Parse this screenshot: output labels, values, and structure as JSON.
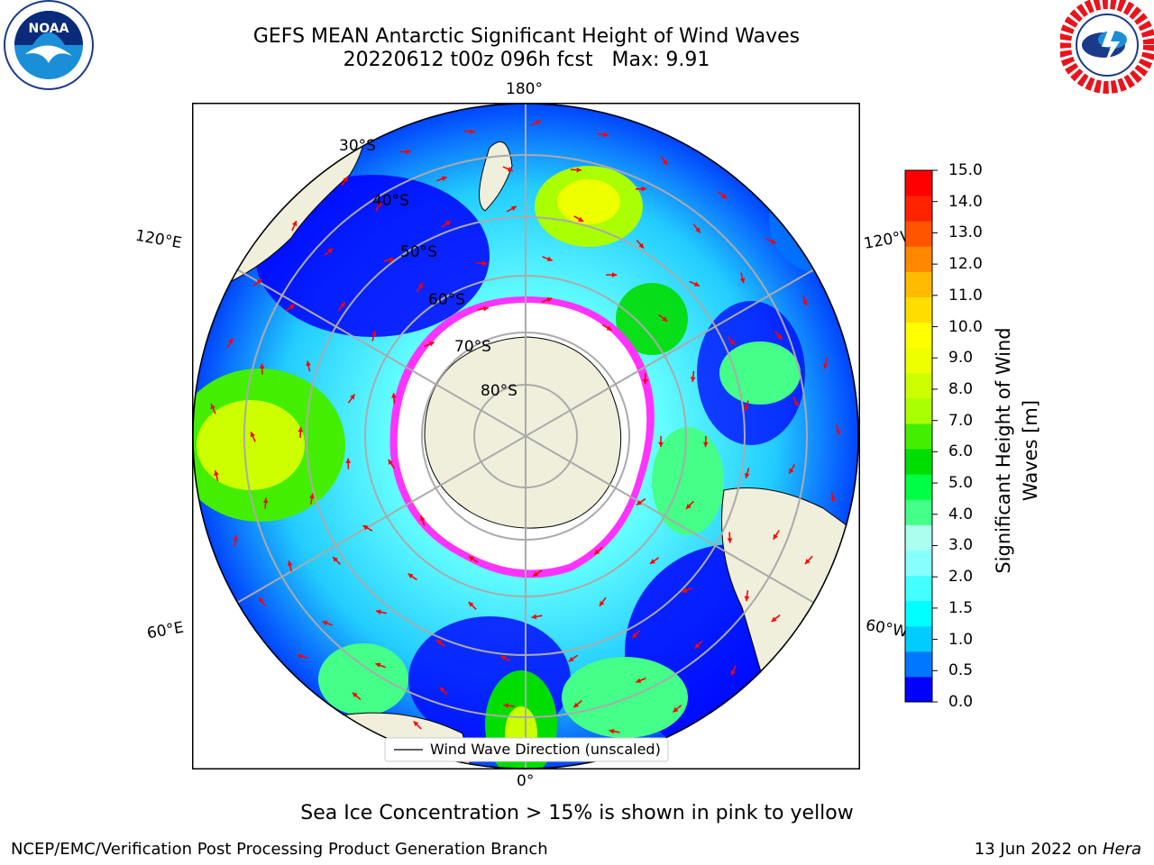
{
  "title_line1": "GEFS MEAN Antarctic Significant Height of Wind Waves",
  "title_line2": "20220612 t00z 096h fcst   Max: 9.91",
  "map": {
    "projection": "south-polar-stereographic",
    "meridian_labels": {
      "top": "180°",
      "bottom": "0°",
      "upper_left": "120°E",
      "upper_right": "120°W",
      "lower_left": "60°E",
      "lower_right": "60°W"
    },
    "parallel_labels": [
      "30°S",
      "40°S",
      "50°S",
      "60°S",
      "70°S",
      "80°S"
    ],
    "legend_label": "Wind Wave Direction (unscaled)",
    "arrow_color": "#ff0000",
    "land_color": "#efefdb",
    "ice_colors": [
      "#ff33ff",
      "#ffcc33"
    ]
  },
  "colorbar": {
    "title": "Significant Height of Wind Waves [m]",
    "ticks": [
      "15.0",
      "14.0",
      "13.0",
      "12.0",
      "11.0",
      "10.0",
      "9.0",
      "8.0",
      "7.0",
      "6.0",
      "5.0",
      "4.0",
      "3.0",
      "2.0",
      "1.5",
      "1.0",
      "0.5",
      "0.0"
    ],
    "colors_bottom_to_top": [
      "#0000ff",
      "#0077ff",
      "#00ccff",
      "#00ffff",
      "#44ffff",
      "#88ffff",
      "#aaffee",
      "#44ff88",
      "#00ff44",
      "#00dd00",
      "#44ee00",
      "#aaff00",
      "#ccff00",
      "#eeff00",
      "#ffff00",
      "#ffdd00",
      "#ffbb00",
      "#ff8800",
      "#ff5500",
      "#ff2200",
      "#ff0000"
    ]
  },
  "footnote": "Sea Ice Concentration > 15% is shown in pink to yellow",
  "credits": "NCEP/EMC/Verification Post Processing Product Generation Branch",
  "date_text": "13 Jun 2022 on ",
  "date_machine": "Hera",
  "logos": {
    "left": "NOAA",
    "right_text": "NATIONAL WEATHER SERVICE"
  }
}
